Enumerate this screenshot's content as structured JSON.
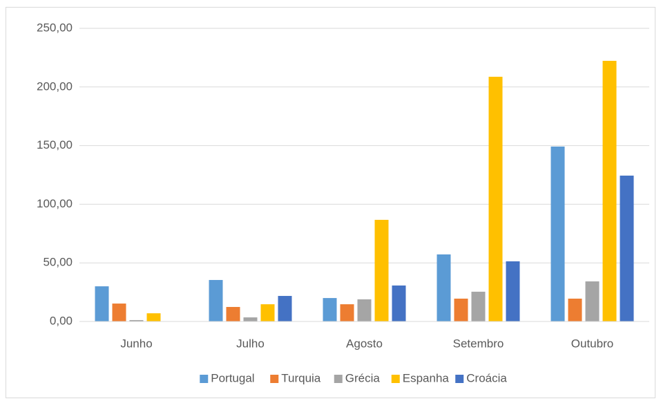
{
  "chart_data": {
    "type": "bar",
    "categories": [
      "Junho",
      "Julho",
      "Agosto",
      "Setembro",
      "Outubro"
    ],
    "series": [
      {
        "name": "Portugal",
        "color": "#5b9bd5",
        "values": [
          30,
          35.4,
          20,
          57.2,
          149.2
        ]
      },
      {
        "name": "Turquia",
        "color": "#ed7d31",
        "values": [
          15.3,
          12.4,
          14.7,
          19.5,
          19.5
        ]
      },
      {
        "name": "Grécia",
        "color": "#a5a5a5",
        "values": [
          1.2,
          3.5,
          18.9,
          25.4,
          34.2
        ]
      },
      {
        "name": "Espanha",
        "color": "#ffc000",
        "values": [
          7,
          14.7,
          86.7,
          208.7,
          222.3
        ]
      },
      {
        "name": "Croácia",
        "color": "#4472c4",
        "values": [
          0,
          21.8,
          30.7,
          51.3,
          124.4
        ]
      }
    ],
    "ylim": [
      0,
      250
    ],
    "yticks": [
      {
        "value": 0,
        "label": "0,00"
      },
      {
        "value": 50,
        "label": "50,00"
      },
      {
        "value": 100,
        "label": "100,00"
      },
      {
        "value": 150,
        "label": "150,00"
      },
      {
        "value": 200,
        "label": "200,00"
      },
      {
        "value": 250,
        "label": "250,00"
      }
    ],
    "grid": true,
    "legend": "bottom"
  }
}
